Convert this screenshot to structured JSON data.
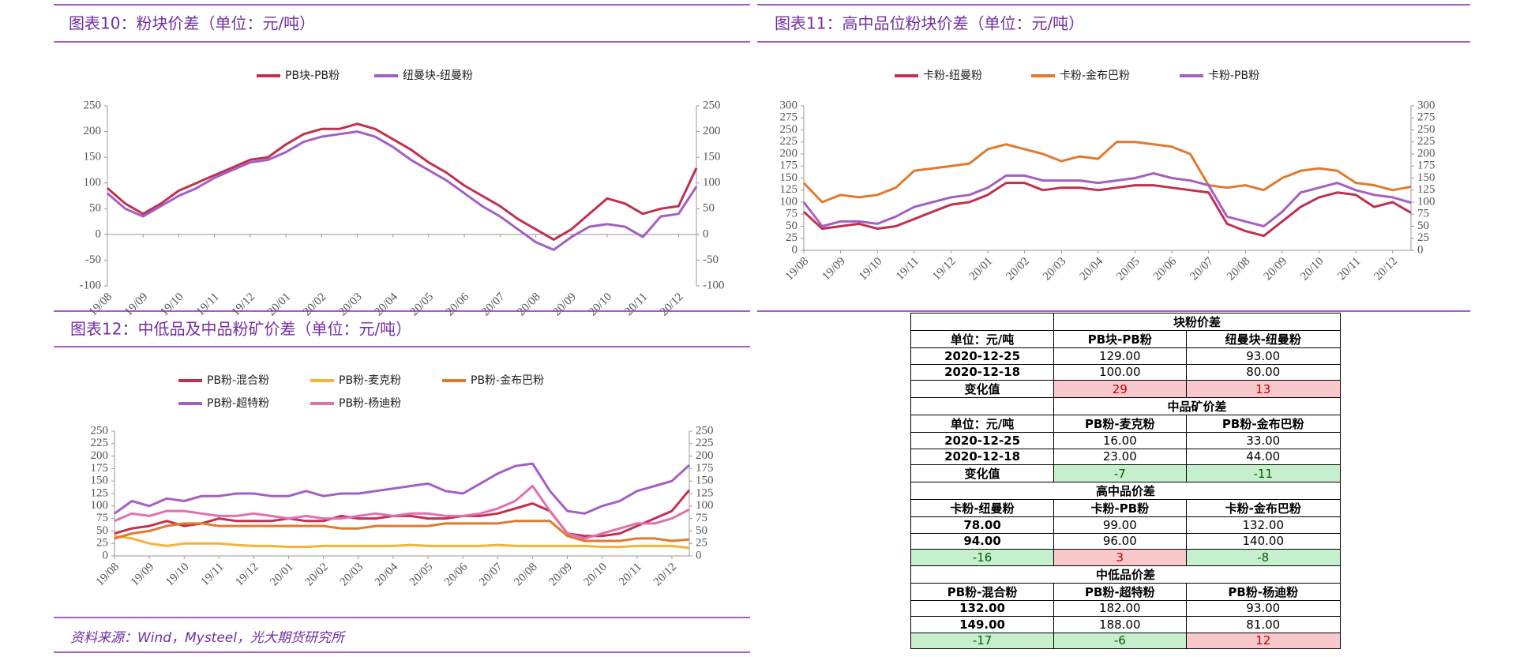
{
  "chart_data": [
    {
      "type": "line",
      "title": "图表10：粉块价差（单位：元/吨）",
      "categories": [
        "19/08",
        null,
        "19/09",
        null,
        "19/10",
        null,
        "19/11",
        null,
        "19/12",
        null,
        "20/01",
        null,
        "20/02",
        null,
        "20/03",
        null,
        "20/04",
        null,
        "20/05",
        null,
        "20/06",
        null,
        "20/07",
        null,
        "20/08",
        null,
        "20/09",
        null,
        "20/10",
        null,
        "20/11",
        null,
        "20/12",
        null
      ],
      "series": [
        {
          "name": "PB块-PB粉",
          "color": "#c0304f",
          "values": [
            90,
            60,
            40,
            60,
            85,
            100,
            115,
            130,
            145,
            150,
            175,
            195,
            205,
            205,
            215,
            205,
            185,
            165,
            140,
            120,
            95,
            75,
            55,
            30,
            10,
            -10,
            10,
            40,
            70,
            60,
            40,
            50,
            55,
            129
          ]
        },
        {
          "name": "纽曼块-纽曼粉",
          "color": "#a35fc5",
          "values": [
            80,
            50,
            35,
            55,
            75,
            90,
            110,
            125,
            140,
            145,
            160,
            180,
            190,
            195,
            200,
            190,
            170,
            145,
            125,
            105,
            80,
            55,
            35,
            10,
            -15,
            -30,
            -5,
            15,
            20,
            15,
            -5,
            35,
            40,
            93
          ]
        }
      ],
      "ylim": [
        -100,
        250
      ],
      "yticks": [
        -100,
        -50,
        0,
        50,
        100,
        150,
        200,
        250
      ],
      "y2lim": [
        -100,
        250
      ],
      "y2ticks": [
        -100,
        -50,
        0,
        50,
        100,
        150,
        200,
        250
      ],
      "legend": "top"
    },
    {
      "type": "line",
      "title": "图表11：高中品位粉块价差（单位：元/吨）",
      "categories": [
        "19/08",
        null,
        "19/09",
        null,
        "19/10",
        null,
        "19/11",
        null,
        "19/12",
        null,
        "20/01",
        null,
        "20/02",
        null,
        "20/03",
        null,
        "20/04",
        null,
        "20/05",
        null,
        "20/06",
        null,
        "20/07",
        null,
        "20/08",
        null,
        "20/09",
        null,
        "20/10",
        null,
        "20/11",
        null,
        "20/12",
        null
      ],
      "series": [
        {
          "name": "卡粉-纽曼粉",
          "color": "#c0304f",
          "values": [
            80,
            45,
            50,
            55,
            45,
            50,
            65,
            80,
            95,
            100,
            115,
            140,
            140,
            125,
            130,
            130,
            125,
            130,
            135,
            135,
            130,
            125,
            120,
            55,
            40,
            30,
            60,
            90,
            110,
            120,
            115,
            90,
            100,
            78
          ]
        },
        {
          "name": "卡粉-金布巴粉",
          "color": "#e07a2e",
          "values": [
            140,
            100,
            115,
            110,
            115,
            130,
            165,
            170,
            175,
            180,
            210,
            220,
            210,
            200,
            185,
            195,
            190,
            225,
            225,
            220,
            215,
            200,
            135,
            130,
            135,
            125,
            150,
            165,
            170,
            165,
            140,
            135,
            125,
            132
          ]
        },
        {
          "name": "卡粉-PB粉",
          "color": "#a35fc5",
          "values": [
            100,
            50,
            60,
            60,
            55,
            70,
            90,
            100,
            110,
            115,
            130,
            155,
            155,
            145,
            145,
            145,
            140,
            145,
            150,
            160,
            150,
            145,
            135,
            70,
            60,
            50,
            80,
            120,
            130,
            140,
            125,
            115,
            110,
            99
          ]
        }
      ],
      "ylim": [
        0,
        300
      ],
      "yticks": [
        0,
        25,
        50,
        75,
        100,
        125,
        150,
        175,
        200,
        225,
        250,
        275,
        300
      ],
      "y2lim": [
        0,
        300
      ],
      "y2ticks": [
        0,
        25,
        50,
        75,
        100,
        125,
        150,
        175,
        200,
        225,
        250,
        275,
        300
      ],
      "legend": "top"
    },
    {
      "type": "line",
      "title": "图表12：中低品及中品粉矿价差（单位：元/吨）",
      "categories": [
        "19/08",
        null,
        "19/09",
        null,
        "19/10",
        null,
        "19/11",
        null,
        "19/12",
        null,
        "20/01",
        null,
        "20/02",
        null,
        "20/03",
        null,
        "20/04",
        null,
        "20/05",
        null,
        "20/06",
        null,
        "20/07",
        null,
        "20/08",
        null,
        "20/09",
        null,
        "20/10",
        null,
        "20/11",
        null,
        "20/12",
        null
      ],
      "series": [
        {
          "name": "PB粉-混合粉",
          "color": "#c0304f",
          "values": [
            45,
            55,
            60,
            70,
            60,
            65,
            75,
            70,
            70,
            70,
            75,
            70,
            70,
            80,
            75,
            75,
            80,
            80,
            75,
            75,
            80,
            80,
            85,
            95,
            105,
            90,
            45,
            40,
            40,
            45,
            60,
            75,
            90,
            132
          ]
        },
        {
          "name": "PB粉-麦克粉",
          "color": "#f5b335",
          "values": [
            40,
            35,
            25,
            20,
            25,
            25,
            25,
            22,
            20,
            20,
            18,
            18,
            20,
            20,
            20,
            20,
            20,
            22,
            20,
            20,
            20,
            20,
            22,
            20,
            20,
            20,
            20,
            20,
            18,
            18,
            20,
            20,
            20,
            16
          ]
        },
        {
          "name": "PB粉-金布巴粉",
          "color": "#e07a2e",
          "values": [
            35,
            45,
            50,
            60,
            65,
            65,
            60,
            60,
            60,
            60,
            60,
            60,
            60,
            55,
            55,
            60,
            60,
            60,
            60,
            65,
            65,
            65,
            65,
            70,
            70,
            70,
            40,
            30,
            30,
            30,
            35,
            35,
            30,
            33
          ]
        },
        {
          "name": "PB粉-超特粉",
          "color": "#a35fc5",
          "values": [
            85,
            110,
            100,
            115,
            110,
            120,
            120,
            125,
            125,
            120,
            120,
            130,
            120,
            125,
            125,
            130,
            135,
            140,
            145,
            130,
            125,
            145,
            165,
            180,
            185,
            130,
            90,
            85,
            100,
            110,
            130,
            140,
            150,
            182
          ]
        },
        {
          "name": "PB粉-杨迪粉",
          "color": "#e070b0",
          "values": [
            70,
            85,
            80,
            90,
            90,
            85,
            80,
            80,
            85,
            80,
            75,
            80,
            75,
            75,
            80,
            85,
            80,
            85,
            85,
            80,
            80,
            85,
            95,
            110,
            140,
            90,
            45,
            35,
            45,
            55,
            65,
            65,
            75,
            93
          ]
        }
      ],
      "ylim": [
        0,
        250
      ],
      "yticks": [
        0,
        25,
        50,
        75,
        100,
        125,
        150,
        175,
        200,
        225,
        250
      ],
      "y2lim": [
        0,
        250
      ],
      "y2ticks": [
        0,
        25,
        50,
        75,
        100,
        125,
        150,
        175,
        200,
        225,
        250
      ],
      "legend": "top"
    }
  ],
  "source": "资料来源：Wind，Mysteel，光大期货研究所",
  "table": {
    "sections": [
      {
        "title": "块粉价差",
        "rows": [
          [
            "单位：元/吨",
            "PB块-PB粉",
            "纽曼块-纽曼粉"
          ],
          [
            "2020-12-25",
            "129.00",
            "93.00"
          ],
          [
            "2020-12-18",
            "100.00",
            "80.00"
          ],
          [
            "变化值",
            "29",
            "13"
          ]
        ]
      },
      {
        "title": "中品矿价差",
        "rows": [
          [
            "单位：元/吨",
            "PB粉-麦克粉",
            "PB粉-金布巴粉"
          ],
          [
            "2020-12-25",
            "16.00",
            "33.00"
          ],
          [
            "2020-12-18",
            "23.00",
            "44.00"
          ],
          [
            "变化值",
            "-7",
            "-11"
          ]
        ]
      },
      {
        "title": "高中品价差",
        "rows": [
          [
            "卡粉-纽曼粉",
            "卡粉-PB粉",
            "卡粉-金布巴粉"
          ],
          [
            "78.00",
            "99.00",
            "132.00"
          ],
          [
            "94.00",
            "96.00",
            "140.00"
          ],
          [
            "-16",
            "3",
            "-8"
          ]
        ]
      },
      {
        "title": "中低品价差",
        "rows": [
          [
            "PB粉-混合粉",
            "PB粉-超特粉",
            "PB粉-杨迪粉"
          ],
          [
            "132.00",
            "182.00",
            "93.00"
          ],
          [
            "149.00",
            "188.00",
            "81.00"
          ],
          [
            "-17",
            "-6",
            "12"
          ]
        ]
      }
    ]
  }
}
